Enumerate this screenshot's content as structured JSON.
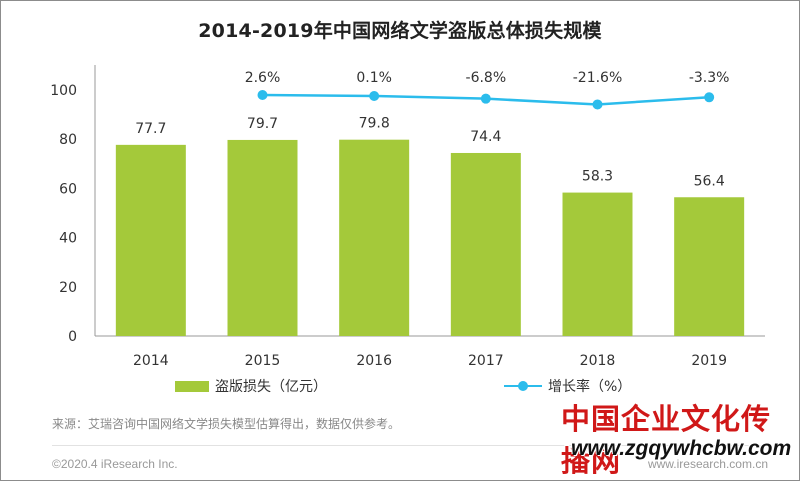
{
  "chart_data": {
    "type": "bar",
    "title": "2014-2019年中国网络文学盗版总体损失规模",
    "categories": [
      "2014",
      "2015",
      "2016",
      "2017",
      "2018",
      "2019"
    ],
    "series": [
      {
        "name": "盗版损失（亿元）",
        "type": "bar",
        "values": [
          77.7,
          79.7,
          79.8,
          74.4,
          58.3,
          56.4
        ]
      },
      {
        "name": "增长率（%）",
        "type": "line",
        "values": [
          null,
          2.6,
          0.1,
          -6.8,
          -21.6,
          -3.3
        ],
        "value_labels": [
          "",
          "2.6%",
          "0.1%",
          "-6.8%",
          "-21.6%",
          "-3.3%"
        ]
      }
    ],
    "ylim": [
      0,
      100
    ],
    "yticks": [
      0,
      20,
      40,
      60,
      80,
      100
    ],
    "secondary_axis_hidden": true,
    "legend": "bottom",
    "grid": false,
    "colors": {
      "bar": "#a4c93a",
      "line": "#2bbcec"
    }
  },
  "footer": {
    "source": "来源：艾瑞咨询中国网络文学损失模型估算得出，数据仅供参考。",
    "copyright": "©2020.4 iResearch Inc.",
    "site": "www.iresearch.com.cn"
  },
  "watermark": {
    "name": "中国企业文化传播网",
    "url": "www.zgqywhcbw.com"
  }
}
